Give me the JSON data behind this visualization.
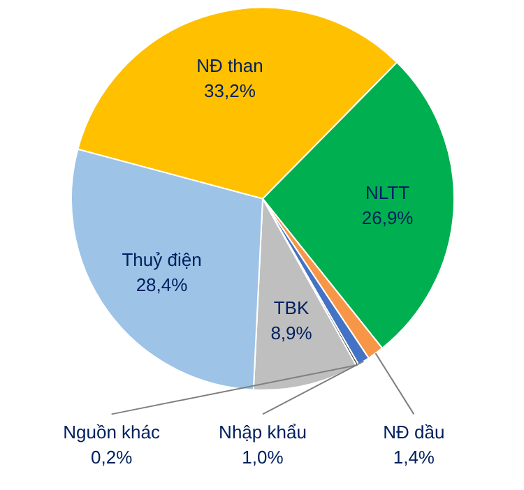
{
  "chart_data": {
    "type": "pie",
    "categories": [
      "NĐ than",
      "NLTT",
      "NĐ dầu",
      "Nhập khẩu",
      "Nguồn khác",
      "TBK",
      "Thuỷ điện"
    ],
    "values": [
      33.2,
      26.9,
      1.4,
      1.0,
      0.2,
      8.9,
      28.4
    ],
    "colors": [
      "#ffc000",
      "#00b050",
      "#f79646",
      "#4472c4",
      "#404040",
      "#bfbfbf",
      "#9dc3e6"
    ],
    "value_labels": [
      "33,2%",
      "26,9%",
      "1,4%",
      "1,0%",
      "0,2%",
      "8,9%",
      "28,4%"
    ]
  }
}
